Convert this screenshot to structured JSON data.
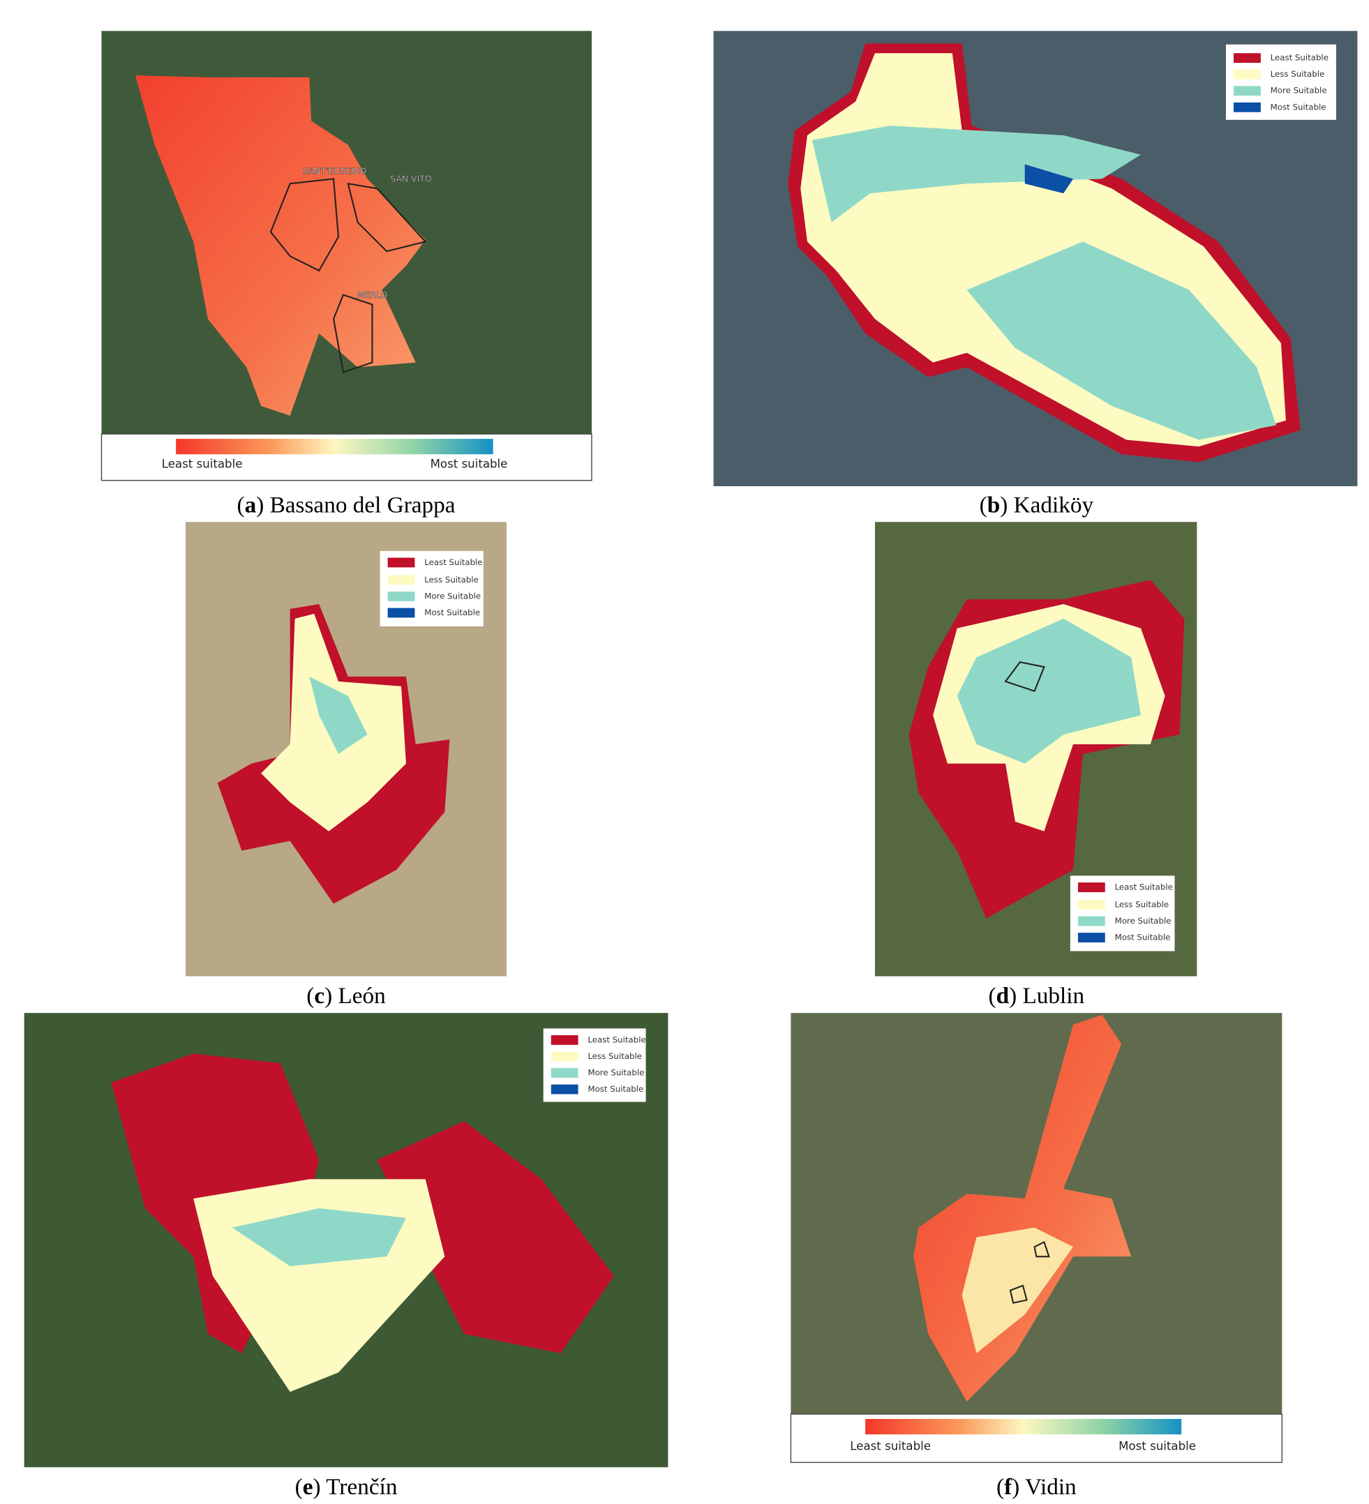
{
  "panels": [
    {
      "caption": [
        "(",
        "a",
        ") Bassano del Grappa"
      ],
      "place_labels": [
        "SANT'EUSEBIO",
        "SAN VITO",
        "MERLO"
      ],
      "legend": [
        "Least suitable",
        "Most suitable"
      ]
    },
    {
      "caption": [
        "(",
        "b",
        ") Kadiköy"
      ],
      "legend": [
        "Least Suitable",
        "Less Suitable",
        "More Suitable",
        "Most Suitable"
      ]
    },
    {
      "caption": [
        "(",
        "c",
        ") León"
      ],
      "legend": [
        "Least Suitable",
        "Less Suitable",
        "More Suitable",
        "Most Suitable"
      ]
    },
    {
      "caption": [
        "(",
        "d",
        ") Lublin"
      ],
      "legend": [
        "Least Suitable",
        "Less Suitable",
        "More Suitable",
        "Most Suitable"
      ]
    },
    {
      "caption": [
        "(",
        "e",
        ") Trenčín"
      ],
      "legend": [
        "Least Suitable",
        "Less Suitable",
        "More Suitable",
        "Most Suitable"
      ]
    },
    {
      "caption": [
        "(",
        "f",
        ") Vidin"
      ],
      "legend": [
        "Least suitable",
        "Most suitable"
      ]
    }
  ]
}
